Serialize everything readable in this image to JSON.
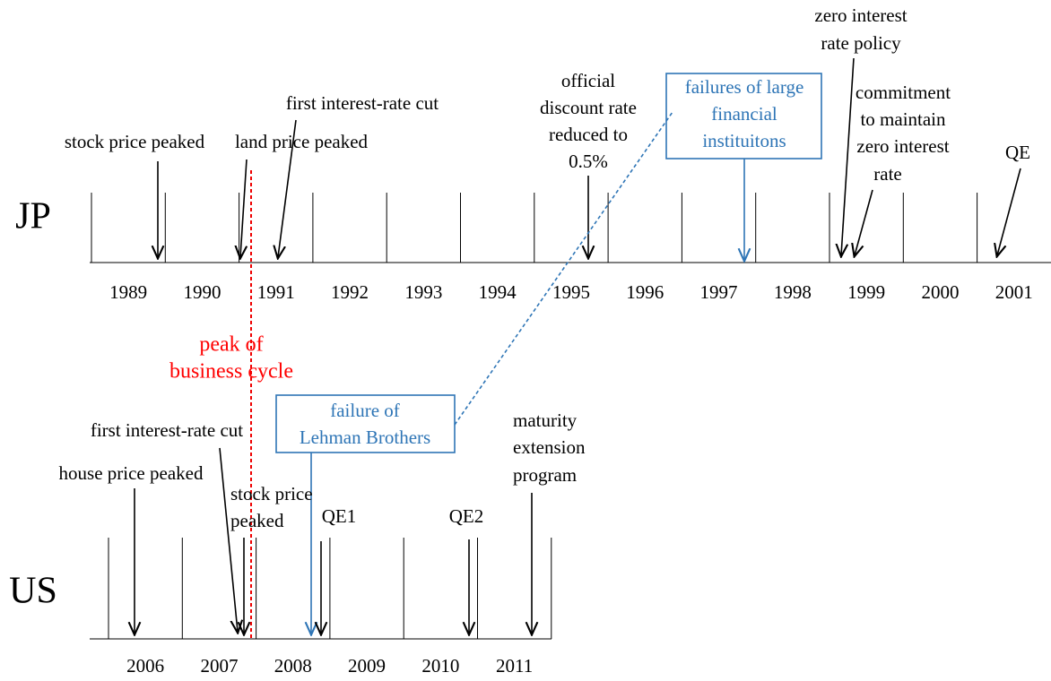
{
  "jp": {
    "label": "JP",
    "years": [
      "1989",
      "1990",
      "1991",
      "1992",
      "1993",
      "1994",
      "1995",
      "1996",
      "1997",
      "1998",
      "1999",
      "2000",
      "2001"
    ],
    "events": {
      "stock_price_peaked": "stock price peaked",
      "land_price_peaked": "land price peaked",
      "first_rate_cut": "first interest-rate cut",
      "discount_rate": [
        "official",
        "discount rate",
        "reduced to",
        "0.5%"
      ],
      "failures": [
        "failures of large",
        "financial",
        "instituitons"
      ],
      "zirp": [
        "zero interest",
        "rate policy"
      ],
      "commitment": [
        "commitment",
        "to maintain",
        "zero interest",
        "rate"
      ],
      "qe": "QE"
    }
  },
  "business_cycle": [
    "peak of",
    "business cycle"
  ],
  "us": {
    "label": "US",
    "years": [
      "2006",
      "2007",
      "2008",
      "2009",
      "2010",
      "2011"
    ],
    "events": {
      "lehman": [
        "failure of",
        "Lehman Brothers"
      ],
      "first_rate_cut": "first interest-rate cut",
      "house_price_peaked": "house price peaked",
      "stock_price_peaked": [
        "stock price",
        "peaked"
      ],
      "qe1": "QE1",
      "qe2": "QE2",
      "maturity": [
        "maturity",
        "extension",
        "program"
      ]
    }
  }
}
